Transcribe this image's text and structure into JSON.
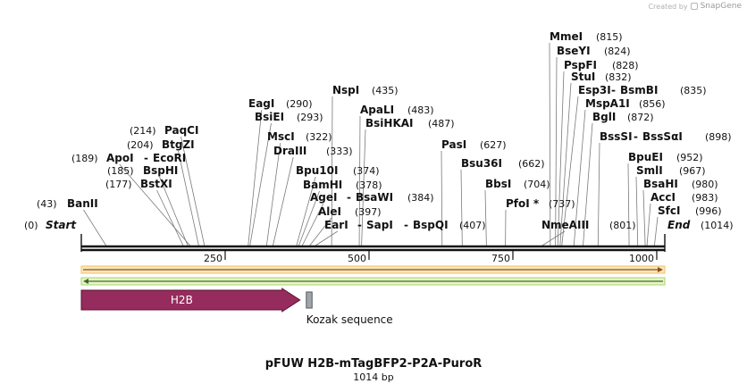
{
  "credit": {
    "prefix": "Created by",
    "brand": "SnapGene"
  },
  "map": {
    "length": 1014,
    "start_label": "Start",
    "start_pos": "(0)",
    "end_label": "End",
    "end_pos": "(1014)",
    "ticks": [
      250,
      500,
      750,
      1000
    ],
    "sites": [
      {
        "name": "BanII",
        "pos": 43,
        "pos_label": "(43)"
      },
      {
        "name": "BstXI",
        "pos": 177,
        "pos_label": "(177)"
      },
      {
        "name": "BspHI",
        "pos": 185,
        "pos_label": "(185)"
      },
      {
        "name": "ApoI",
        "pos": 189,
        "pos_label": "(189)",
        "partner": "EcoRI"
      },
      {
        "name": "BtgZI",
        "pos": 204,
        "pos_label": "(204)"
      },
      {
        "name": "PaqCI",
        "pos": 214,
        "pos_label": "(214)"
      },
      {
        "name": "EagI",
        "pos": 290,
        "pos_label": "(290)"
      },
      {
        "name": "BsiEI",
        "pos": 293,
        "pos_label": "(293)"
      },
      {
        "name": "MscI",
        "pos": 322,
        "pos_label": "(322)"
      },
      {
        "name": "DraIII",
        "pos": 333,
        "pos_label": "(333)"
      },
      {
        "name": "Bpu10I",
        "pos": 374,
        "pos_label": "(374)"
      },
      {
        "name": "BamHI",
        "pos": 378,
        "pos_label": "(378)"
      },
      {
        "name": "AgeI",
        "pos": 384,
        "pos_label": "(384)",
        "partner": "BsaWI"
      },
      {
        "name": "AleI",
        "pos": 397,
        "pos_label": "(397)"
      },
      {
        "name": "EarI",
        "pos": 407,
        "pos_label": "(407)",
        "partner": "SapI",
        "partner2": "BspQI"
      },
      {
        "name": "NspI",
        "pos": 435,
        "pos_label": "(435)"
      },
      {
        "name": "ApaLI",
        "pos": 483,
        "pos_label": "(483)"
      },
      {
        "name": "BsiHKAI",
        "pos": 487,
        "pos_label": "(487)"
      },
      {
        "name": "PasI",
        "pos": 627,
        "pos_label": "(627)"
      },
      {
        "name": "Bsu36I",
        "pos": 662,
        "pos_label": "(662)"
      },
      {
        "name": "BbsI",
        "pos": 704,
        "pos_label": "(704)"
      },
      {
        "name": "PfoI *",
        "pos": 737,
        "pos_label": "(737)"
      },
      {
        "name": "NmeAIII",
        "pos": 801,
        "pos_label": "(801)"
      },
      {
        "name": "MmeI",
        "pos": 815,
        "pos_label": "(815)"
      },
      {
        "name": "BseYI",
        "pos": 824,
        "pos_label": "(824)"
      },
      {
        "name": "PspFI",
        "pos": 828,
        "pos_label": "(828)"
      },
      {
        "name": "StuI",
        "pos": 832,
        "pos_label": "(832)"
      },
      {
        "name": "Esp3I",
        "pos": 835,
        "pos_label": "(835)",
        "partner": "BsmBI"
      },
      {
        "name": "MspA1I",
        "pos": 856,
        "pos_label": "(856)"
      },
      {
        "name": "BglI",
        "pos": 872,
        "pos_label": "(872)"
      },
      {
        "name": "BssSI",
        "pos": 898,
        "pos_label": "(898)",
        "partner": "BssSαI"
      },
      {
        "name": "BpuEI",
        "pos": 952,
        "pos_label": "(952)"
      },
      {
        "name": "SmlI",
        "pos": 967,
        "pos_label": "(967)"
      },
      {
        "name": "BsaHI",
        "pos": 980,
        "pos_label": "(980)"
      },
      {
        "name": "AccI",
        "pos": 983,
        "pos_label": "(983)"
      },
      {
        "name": "SfcI",
        "pos": 996,
        "pos_label": "(996)"
      }
    ],
    "features": [
      {
        "name": "H2B",
        "start": 0,
        "end": 380,
        "color": "#962b5d",
        "direction": "forward"
      },
      {
        "name": "Kozak sequence",
        "start": 391,
        "end": 401,
        "color": "#a0a4ab",
        "direction": "none"
      }
    ]
  },
  "title": "pFUW H2B-mTagBFP2-P2A-PuroR",
  "subtitle": "1014 bp"
}
